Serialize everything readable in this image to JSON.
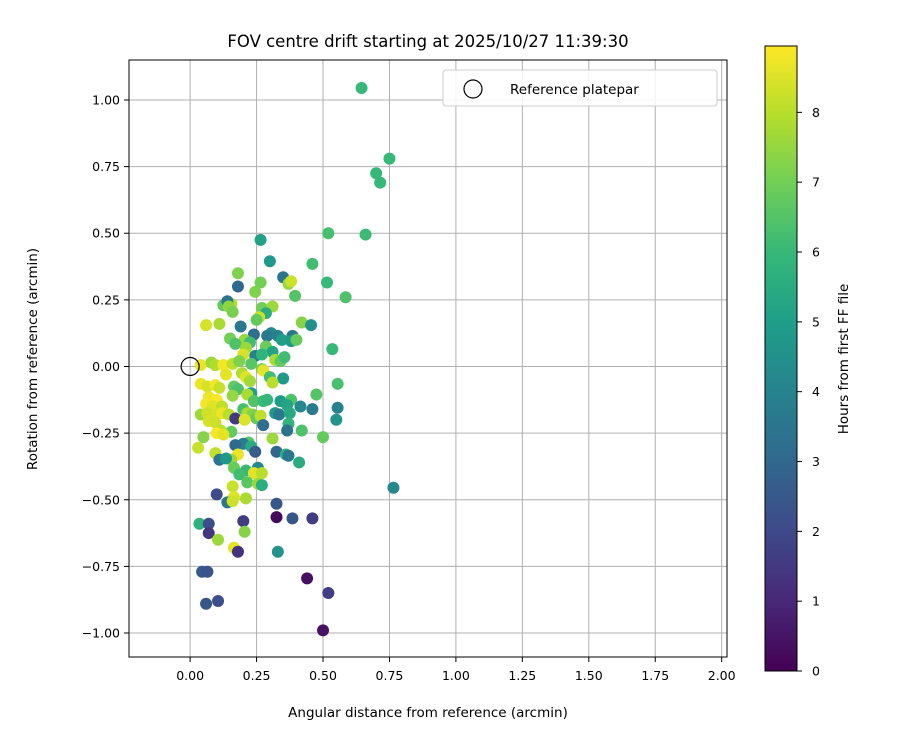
{
  "chart_data": {
    "type": "scatter",
    "title": "FOV centre drift starting at 2025/10/27 11:39:30",
    "xlabel": "Angular distance from reference (arcmin)",
    "ylabel": "Rotation from reference (arcmin)",
    "xlim": [
      -0.23,
      2.02
    ],
    "ylim": [
      -1.09,
      1.15
    ],
    "x_ticks": [
      0.0,
      0.25,
      0.5,
      0.75,
      1.0,
      1.25,
      1.5,
      1.75,
      2.0
    ],
    "x_tick_labels": [
      "0.00",
      "0.25",
      "0.50",
      "0.75",
      "1.00",
      "1.25",
      "1.50",
      "1.75",
      "2.00"
    ],
    "y_ticks": [
      1.0,
      0.75,
      0.5,
      0.25,
      0.0,
      -0.25,
      -0.5,
      -0.75,
      -1.0
    ],
    "y_tick_labels": [
      "1.00",
      "0.75",
      "0.50",
      "0.25",
      "0.00",
      "−0.25",
      "−0.50",
      "−0.75",
      "−1.00"
    ],
    "grid": true,
    "legend": {
      "location": "top-right",
      "entries": [
        "Reference platepar"
      ]
    },
    "reference": {
      "x": 0.0,
      "y": 0.0
    },
    "colorbar": {
      "label": "Hours from first FF file",
      "range": [
        0,
        8.95
      ],
      "ticks": [
        0,
        1,
        2,
        3,
        4,
        5,
        6,
        7,
        8
      ],
      "tick_labels": [
        "0",
        "1",
        "2",
        "3",
        "4",
        "5",
        "6",
        "7",
        "8"
      ],
      "colormap": "viridis",
      "stops": [
        "#440154",
        "#482878",
        "#3e4989",
        "#31688e",
        "#26828e",
        "#1f9e89",
        "#35b779",
        "#6ece58",
        "#b5de2b",
        "#fde725"
      ]
    },
    "points": [
      {
        "x": 0.645,
        "y": 1.045,
        "h": 6.0
      },
      {
        "x": 0.75,
        "y": 0.78,
        "h": 6.0
      },
      {
        "x": 0.7,
        "y": 0.725,
        "h": 6.0
      },
      {
        "x": 0.715,
        "y": 0.69,
        "h": 6.0
      },
      {
        "x": 0.52,
        "y": 0.5,
        "h": 6.3
      },
      {
        "x": 0.66,
        "y": 0.495,
        "h": 6.1
      },
      {
        "x": 0.265,
        "y": 0.475,
        "h": 5.1
      },
      {
        "x": 0.3,
        "y": 0.395,
        "h": 4.8
      },
      {
        "x": 0.46,
        "y": 0.385,
        "h": 6.2
      },
      {
        "x": 0.18,
        "y": 0.35,
        "h": 7.2
      },
      {
        "x": 0.35,
        "y": 0.335,
        "h": 3.5
      },
      {
        "x": 0.515,
        "y": 0.315,
        "h": 6.0
      },
      {
        "x": 0.265,
        "y": 0.315,
        "h": 7.0
      },
      {
        "x": 0.37,
        "y": 0.31,
        "h": 7.5
      },
      {
        "x": 0.38,
        "y": 0.32,
        "h": 8.3
      },
      {
        "x": 0.18,
        "y": 0.3,
        "h": 3.0
      },
      {
        "x": 0.245,
        "y": 0.28,
        "h": 7.2
      },
      {
        "x": 0.395,
        "y": 0.265,
        "h": 6.5
      },
      {
        "x": 0.585,
        "y": 0.26,
        "h": 6.4
      },
      {
        "x": 0.125,
        "y": 0.23,
        "h": 6.8
      },
      {
        "x": 0.155,
        "y": 0.235,
        "h": 7.9
      },
      {
        "x": 0.14,
        "y": 0.245,
        "h": 3.5
      },
      {
        "x": 0.145,
        "y": 0.225,
        "h": 7.4
      },
      {
        "x": 0.27,
        "y": 0.22,
        "h": 7.0
      },
      {
        "x": 0.31,
        "y": 0.225,
        "h": 7.6
      },
      {
        "x": 0.16,
        "y": 0.205,
        "h": 7.1
      },
      {
        "x": 0.285,
        "y": 0.2,
        "h": 5.5
      },
      {
        "x": 0.26,
        "y": 0.185,
        "h": 8.2
      },
      {
        "x": 0.25,
        "y": 0.175,
        "h": 6.8
      },
      {
        "x": 0.42,
        "y": 0.165,
        "h": 7.3
      },
      {
        "x": 0.455,
        "y": 0.155,
        "h": 4.5
      },
      {
        "x": 0.06,
        "y": 0.155,
        "h": 8.4
      },
      {
        "x": 0.11,
        "y": 0.16,
        "h": 7.8
      },
      {
        "x": 0.19,
        "y": 0.15,
        "h": 3.6
      },
      {
        "x": 0.24,
        "y": 0.12,
        "h": 3.2
      },
      {
        "x": 0.305,
        "y": 0.125,
        "h": 4.2
      },
      {
        "x": 0.29,
        "y": 0.115,
        "h": 3.6
      },
      {
        "x": 0.33,
        "y": 0.115,
        "h": 4.0
      },
      {
        "x": 0.385,
        "y": 0.115,
        "h": 3.5
      },
      {
        "x": 0.15,
        "y": 0.105,
        "h": 7.0
      },
      {
        "x": 0.205,
        "y": 0.1,
        "h": 7.5
      },
      {
        "x": 0.225,
        "y": 0.09,
        "h": 6.2
      },
      {
        "x": 0.345,
        "y": 0.1,
        "h": 5.0
      },
      {
        "x": 0.38,
        "y": 0.095,
        "h": 4.8
      },
      {
        "x": 0.4,
        "y": 0.1,
        "h": 6.8
      },
      {
        "x": 0.17,
        "y": 0.085,
        "h": 6.4
      },
      {
        "x": 0.21,
        "y": 0.07,
        "h": 7.6
      },
      {
        "x": 0.285,
        "y": 0.075,
        "h": 6.9
      },
      {
        "x": 0.31,
        "y": 0.055,
        "h": 5.2
      },
      {
        "x": 0.535,
        "y": 0.065,
        "h": 6.0
      },
      {
        "x": 0.2,
        "y": 0.045,
        "h": 8.4
      },
      {
        "x": 0.245,
        "y": 0.04,
        "h": 4.0
      },
      {
        "x": 0.27,
        "y": 0.045,
        "h": 5.8
      },
      {
        "x": 0.32,
        "y": 0.025,
        "h": 7.8
      },
      {
        "x": 0.34,
        "y": 0.02,
        "h": 6.8
      },
      {
        "x": 0.355,
        "y": 0.035,
        "h": 6.2
      },
      {
        "x": 0.04,
        "y": 0.005,
        "h": 8.7
      },
      {
        "x": 0.08,
        "y": 0.015,
        "h": 7.6
      },
      {
        "x": 0.095,
        "y": 0.005,
        "h": 7.9
      },
      {
        "x": 0.125,
        "y": 0.005,
        "h": 8.8
      },
      {
        "x": 0.16,
        "y": 0.01,
        "h": 8.1
      },
      {
        "x": 0.185,
        "y": 0.02,
        "h": 7.2
      },
      {
        "x": 0.23,
        "y": 0.01,
        "h": 6.6
      },
      {
        "x": 0.27,
        "y": -0.01,
        "h": 7.0
      },
      {
        "x": 0.275,
        "y": -0.015,
        "h": 8.6
      },
      {
        "x": 0.135,
        "y": -0.03,
        "h": 8.6
      },
      {
        "x": 0.195,
        "y": -0.025,
        "h": 7.9
      },
      {
        "x": 0.21,
        "y": -0.04,
        "h": 8.5
      },
      {
        "x": 0.225,
        "y": -0.055,
        "h": 7.7
      },
      {
        "x": 0.3,
        "y": -0.04,
        "h": 6.2
      },
      {
        "x": 0.35,
        "y": -0.045,
        "h": 4.8
      },
      {
        "x": 0.31,
        "y": -0.06,
        "h": 8.0
      },
      {
        "x": 0.555,
        "y": -0.065,
        "h": 6.3
      },
      {
        "x": 0.04,
        "y": -0.065,
        "h": 8.7
      },
      {
        "x": 0.065,
        "y": -0.075,
        "h": 8.4
      },
      {
        "x": 0.095,
        "y": -0.07,
        "h": 8.8
      },
      {
        "x": 0.11,
        "y": -0.08,
        "h": 8.2
      },
      {
        "x": 0.165,
        "y": -0.075,
        "h": 6.8
      },
      {
        "x": 0.18,
        "y": -0.085,
        "h": 6.4
      },
      {
        "x": 0.23,
        "y": -0.1,
        "h": 5.0
      },
      {
        "x": 0.215,
        "y": -0.105,
        "h": 7.8
      },
      {
        "x": 0.16,
        "y": -0.11,
        "h": 7.5
      },
      {
        "x": 0.475,
        "y": -0.105,
        "h": 6.5
      },
      {
        "x": 0.07,
        "y": -0.115,
        "h": 8.7
      },
      {
        "x": 0.1,
        "y": -0.125,
        "h": 8.9
      },
      {
        "x": 0.06,
        "y": -0.14,
        "h": 8.8
      },
      {
        "x": 0.085,
        "y": -0.15,
        "h": 8.5
      },
      {
        "x": 0.12,
        "y": -0.15,
        "h": 8.1
      },
      {
        "x": 0.24,
        "y": -0.13,
        "h": 6.5
      },
      {
        "x": 0.275,
        "y": -0.13,
        "h": 6.1
      },
      {
        "x": 0.29,
        "y": -0.125,
        "h": 5.9
      },
      {
        "x": 0.34,
        "y": -0.13,
        "h": 4.9
      },
      {
        "x": 0.38,
        "y": -0.125,
        "h": 6.4
      },
      {
        "x": 0.365,
        "y": -0.145,
        "h": 5.2
      },
      {
        "x": 0.415,
        "y": -0.15,
        "h": 4.2
      },
      {
        "x": 0.46,
        "y": -0.16,
        "h": 3.7
      },
      {
        "x": 0.555,
        "y": -0.155,
        "h": 4.0
      },
      {
        "x": 0.04,
        "y": -0.18,
        "h": 7.6
      },
      {
        "x": 0.065,
        "y": -0.175,
        "h": 8.3
      },
      {
        "x": 0.1,
        "y": -0.18,
        "h": 8.4
      },
      {
        "x": 0.12,
        "y": -0.175,
        "h": 8.7
      },
      {
        "x": 0.145,
        "y": -0.18,
        "h": 8.0
      },
      {
        "x": 0.2,
        "y": -0.16,
        "h": 6.3
      },
      {
        "x": 0.215,
        "y": -0.175,
        "h": 7.8
      },
      {
        "x": 0.235,
        "y": -0.18,
        "h": 7.2
      },
      {
        "x": 0.25,
        "y": -0.195,
        "h": 6.8
      },
      {
        "x": 0.265,
        "y": -0.185,
        "h": 8.1
      },
      {
        "x": 0.32,
        "y": -0.175,
        "h": 4.8
      },
      {
        "x": 0.335,
        "y": -0.18,
        "h": 3.6
      },
      {
        "x": 0.375,
        "y": -0.175,
        "h": 5.4
      },
      {
        "x": 0.17,
        "y": -0.195,
        "h": 1.5
      },
      {
        "x": 0.205,
        "y": -0.2,
        "h": 8.5
      },
      {
        "x": 0.07,
        "y": -0.205,
        "h": 8.4
      },
      {
        "x": 0.095,
        "y": -0.21,
        "h": 8.3
      },
      {
        "x": 0.55,
        "y": -0.2,
        "h": 4.6
      },
      {
        "x": 0.37,
        "y": -0.215,
        "h": 5.8
      },
      {
        "x": 0.275,
        "y": -0.22,
        "h": 3.2
      },
      {
        "x": 0.115,
        "y": -0.24,
        "h": 8.0
      },
      {
        "x": 0.42,
        "y": -0.24,
        "h": 6.4
      },
      {
        "x": 0.365,
        "y": -0.24,
        "h": 3.4
      },
      {
        "x": 0.155,
        "y": -0.245,
        "h": 6.8
      },
      {
        "x": 0.1,
        "y": -0.25,
        "h": 8.9
      },
      {
        "x": 0.125,
        "y": -0.255,
        "h": 8.6
      },
      {
        "x": 0.05,
        "y": -0.265,
        "h": 7.3
      },
      {
        "x": 0.5,
        "y": -0.265,
        "h": 6.8
      },
      {
        "x": 0.31,
        "y": -0.27,
        "h": 7.6
      },
      {
        "x": 0.22,
        "y": -0.285,
        "h": 6.6
      },
      {
        "x": 0.2,
        "y": -0.29,
        "h": 3.8
      },
      {
        "x": 0.17,
        "y": -0.295,
        "h": 3.1
      },
      {
        "x": 0.03,
        "y": -0.305,
        "h": 8.2
      },
      {
        "x": 0.23,
        "y": -0.3,
        "h": 5.5
      },
      {
        "x": 0.245,
        "y": -0.32,
        "h": 2.6
      },
      {
        "x": 0.325,
        "y": -0.32,
        "h": 3.0
      },
      {
        "x": 0.36,
        "y": -0.33,
        "h": 5.6
      },
      {
        "x": 0.37,
        "y": -0.335,
        "h": 3.5
      },
      {
        "x": 0.095,
        "y": -0.325,
        "h": 8.1
      },
      {
        "x": 0.18,
        "y": -0.33,
        "h": 8.7
      },
      {
        "x": 0.155,
        "y": -0.35,
        "h": 7.6
      },
      {
        "x": 0.11,
        "y": -0.35,
        "h": 3.5
      },
      {
        "x": 0.135,
        "y": -0.345,
        "h": 4.8
      },
      {
        "x": 0.41,
        "y": -0.36,
        "h": 5.5
      },
      {
        "x": 0.165,
        "y": -0.38,
        "h": 6.9
      },
      {
        "x": 0.21,
        "y": -0.39,
        "h": 6.0
      },
      {
        "x": 0.255,
        "y": -0.38,
        "h": 4.2
      },
      {
        "x": 0.185,
        "y": -0.405,
        "h": 6.2
      },
      {
        "x": 0.24,
        "y": -0.4,
        "h": 8.6
      },
      {
        "x": 0.27,
        "y": -0.4,
        "h": 8.0
      },
      {
        "x": 0.215,
        "y": -0.435,
        "h": 6.6
      },
      {
        "x": 0.16,
        "y": -0.45,
        "h": 8.2
      },
      {
        "x": 0.255,
        "y": -0.44,
        "h": 7.6
      },
      {
        "x": 0.27,
        "y": -0.445,
        "h": 5.6
      },
      {
        "x": 0.765,
        "y": -0.455,
        "h": 4.2
      },
      {
        "x": 0.1,
        "y": -0.48,
        "h": 2.1
      },
      {
        "x": 0.165,
        "y": -0.49,
        "h": 8.5
      },
      {
        "x": 0.21,
        "y": -0.495,
        "h": 7.8
      },
      {
        "x": 0.14,
        "y": -0.51,
        "h": 3.6
      },
      {
        "x": 0.16,
        "y": -0.505,
        "h": 8.3
      },
      {
        "x": 0.325,
        "y": -0.515,
        "h": 2.4
      },
      {
        "x": 0.325,
        "y": -0.565,
        "h": 0.2
      },
      {
        "x": 0.385,
        "y": -0.57,
        "h": 2.4
      },
      {
        "x": 0.46,
        "y": -0.57,
        "h": 1.6
      },
      {
        "x": 0.2,
        "y": -0.58,
        "h": 1.6
      },
      {
        "x": 0.035,
        "y": -0.59,
        "h": 5.7
      },
      {
        "x": 0.07,
        "y": -0.59,
        "h": 2.2
      },
      {
        "x": 0.07,
        "y": -0.625,
        "h": 1.4
      },
      {
        "x": 0.205,
        "y": -0.62,
        "h": 7.3
      },
      {
        "x": 0.105,
        "y": -0.65,
        "h": 7.6
      },
      {
        "x": 0.165,
        "y": -0.68,
        "h": 8.6
      },
      {
        "x": 0.18,
        "y": -0.695,
        "h": 1.3
      },
      {
        "x": 0.33,
        "y": -0.695,
        "h": 4.6
      },
      {
        "x": 0.045,
        "y": -0.77,
        "h": 2.5
      },
      {
        "x": 0.065,
        "y": -0.77,
        "h": 2.3
      },
      {
        "x": 0.44,
        "y": -0.795,
        "h": 0.4
      },
      {
        "x": 0.52,
        "y": -0.85,
        "h": 1.7
      },
      {
        "x": 0.105,
        "y": -0.88,
        "h": 2.2
      },
      {
        "x": 0.06,
        "y": -0.89,
        "h": 2.4
      },
      {
        "x": 0.5,
        "y": -0.99,
        "h": 0.4
      }
    ]
  }
}
